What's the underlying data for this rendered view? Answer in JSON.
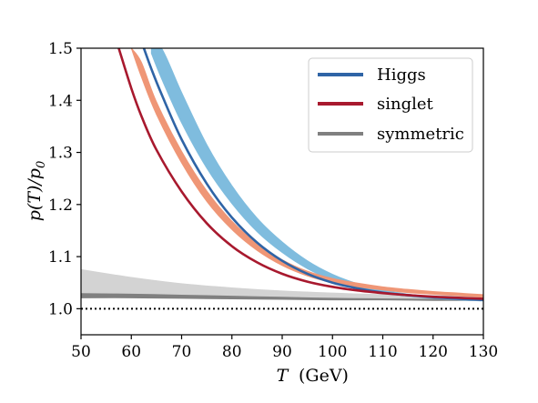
{
  "chart_data": {
    "type": "line",
    "xlabel": "T (GeV)",
    "ylabel": "p(T)/p0",
    "xlim": [
      50,
      130
    ],
    "ylim": [
      0.95,
      1.5
    ],
    "x_ticks": [
      50,
      60,
      70,
      80,
      90,
      100,
      110,
      120,
      130
    ],
    "y_ticks": [
      1.0,
      1.1,
      1.2,
      1.3,
      1.4,
      1.5
    ],
    "x_tick_labels": [
      "50",
      "60",
      "70",
      "80",
      "90",
      "100",
      "110",
      "120",
      "130"
    ],
    "y_tick_labels": [
      "1.0",
      "1.1",
      "1.2",
      "1.3",
      "1.4",
      "1.5"
    ],
    "grid": false,
    "legend_position": "top-right",
    "legend": [
      {
        "label": "Higgs",
        "color": "#2f64a6"
      },
      {
        "label": "singlet",
        "color": "#a8192e"
      },
      {
        "label": "symmetric",
        "color": "#808080"
      }
    ],
    "reference_line": {
      "y": 1.0,
      "style": "dotted",
      "color": "#000000"
    },
    "series": [
      {
        "kind": "band",
        "color": "#7fbcde",
        "x": [
          64,
          66,
          70,
          75,
          80,
          85,
          90,
          95,
          100,
          105,
          110,
          115,
          120,
          125,
          130
        ],
        "lower": [
          1.49,
          1.442,
          1.357,
          1.27,
          1.202,
          1.148,
          1.108,
          1.077,
          1.055,
          1.04,
          1.03,
          1.024,
          1.02,
          1.017,
          1.015
        ],
        "upper": [
          1.5,
          1.5,
          1.415,
          1.315,
          1.236,
          1.174,
          1.128,
          1.092,
          1.066,
          1.048,
          1.036,
          1.028,
          1.023,
          1.019,
          1.017
        ]
      },
      {
        "kind": "band",
        "color": "#ef9676",
        "x": [
          60,
          62,
          65,
          70,
          75,
          80,
          85,
          90,
          95,
          100,
          105,
          110,
          115,
          120,
          125,
          130
        ],
        "lower": [
          1.5,
          1.445,
          1.373,
          1.28,
          1.206,
          1.152,
          1.112,
          1.083,
          1.063,
          1.05,
          1.042,
          1.036,
          1.031,
          1.028,
          1.025,
          1.022
        ],
        "upper": [
          1.5,
          1.473,
          1.397,
          1.302,
          1.226,
          1.168,
          1.125,
          1.094,
          1.072,
          1.058,
          1.049,
          1.042,
          1.037,
          1.033,
          1.03,
          1.027
        ]
      },
      {
        "kind": "line",
        "name": "Higgs",
        "color": "#2f64a6",
        "x": [
          62.5,
          64,
          66,
          70,
          75,
          80,
          85,
          90,
          95,
          100,
          105,
          110,
          115,
          120,
          125,
          130
        ],
        "y": [
          1.5,
          1.46,
          1.412,
          1.325,
          1.24,
          1.175,
          1.127,
          1.092,
          1.067,
          1.05,
          1.039,
          1.031,
          1.026,
          1.022,
          1.019,
          1.017
        ]
      },
      {
        "kind": "line",
        "name": "singlet",
        "color": "#a8192e",
        "x": [
          57.5,
          60,
          62,
          65,
          70,
          75,
          80,
          85,
          90,
          95,
          100,
          105,
          110,
          115,
          120,
          125,
          130
        ],
        "y": [
          1.5,
          1.423,
          1.37,
          1.305,
          1.225,
          1.164,
          1.12,
          1.089,
          1.067,
          1.052,
          1.042,
          1.035,
          1.03,
          1.026,
          1.023,
          1.021,
          1.019
        ]
      },
      {
        "kind": "band",
        "color": "#d3d3d3",
        "x": [
          50,
          60,
          70,
          80,
          90,
          100,
          110,
          120,
          130
        ],
        "lower": [
          1.03,
          1.028,
          1.026,
          1.024,
          1.022,
          1.021,
          1.02,
          1.019,
          1.018
        ],
        "upper": [
          1.075,
          1.06,
          1.048,
          1.04,
          1.034,
          1.03,
          1.027,
          1.025,
          1.024
        ]
      },
      {
        "kind": "band",
        "color": "#808080",
        "x": [
          50,
          60,
          70,
          80,
          90,
          100,
          110,
          120,
          130
        ],
        "lower": [
          1.021,
          1.021,
          1.02,
          1.019,
          1.018,
          1.017,
          1.017,
          1.016,
          1.016
        ],
        "upper": [
          1.029,
          1.028,
          1.026,
          1.024,
          1.022,
          1.02,
          1.019,
          1.018,
          1.017
        ]
      }
    ]
  }
}
